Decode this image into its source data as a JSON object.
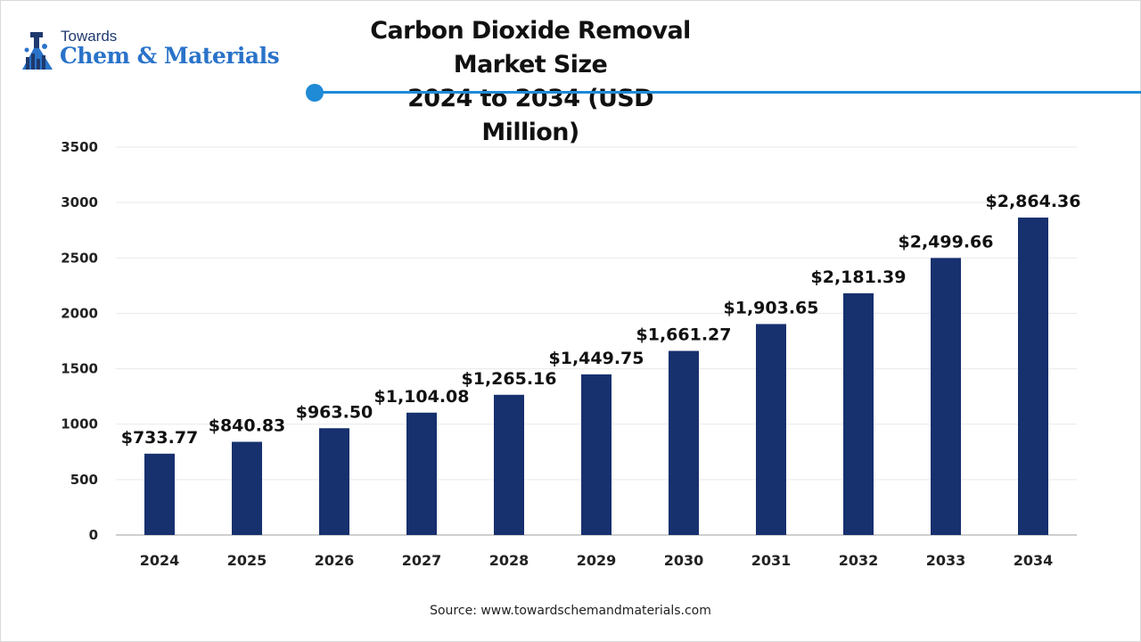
{
  "logo": {
    "top_text": "Towards",
    "main_text": "Chem & Materials",
    "icon": "flask-icon",
    "colors": {
      "dark": "#1f3a6e",
      "accent": "#2a73c9"
    }
  },
  "title": {
    "line1": "Carbon Dioxide Removal Market Size",
    "line2": "2024 to 2034 (USD Million)"
  },
  "source": "Source: www.towardschemandmaterials.com",
  "colors": {
    "bar": "#17306e",
    "divider": "#1f8ad6",
    "grid": "#e9e9e9",
    "axis": "#bfbfbf"
  },
  "chart_data": {
    "type": "bar",
    "categories": [
      "2024",
      "2025",
      "2026",
      "2027",
      "2028",
      "2029",
      "2030",
      "2031",
      "2032",
      "2033",
      "2034"
    ],
    "values": [
      733.77,
      840.83,
      963.5,
      1104.08,
      1265.16,
      1449.75,
      1661.27,
      1903.65,
      2181.39,
      2499.66,
      2864.36
    ],
    "data_labels": [
      "$733.77",
      "$840.83",
      "$963.50",
      "$1,104.08",
      "$1,265.16",
      "$1,449.75",
      "$1,661.27",
      "$1,903.65",
      "$2,181.39",
      "$2,499.66",
      "$2,864.36"
    ],
    "title": "Carbon Dioxide Removal Market Size 2024 to 2034 (USD Million)",
    "xlabel": "",
    "ylabel": "",
    "ylim": [
      0,
      3500
    ],
    "yticks": [
      "0",
      "500",
      "1000",
      "1500",
      "2000",
      "2500",
      "3000",
      "3500"
    ],
    "grid": true,
    "legend": "none"
  }
}
